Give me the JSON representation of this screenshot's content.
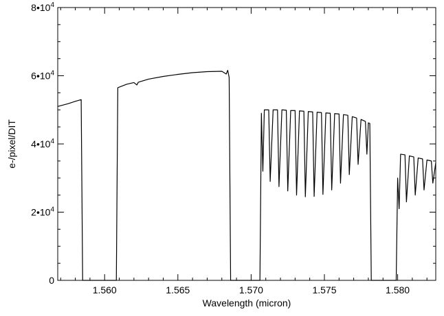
{
  "chart_data": {
    "type": "line",
    "title": "",
    "xlabel": "Wavelength (micron)",
    "ylabel": "e-/pixel/DIT",
    "xlim": [
      1.5568,
      1.5826
    ],
    "ylim": [
      0,
      80000
    ],
    "x_ticks": [
      {
        "value": 1.56,
        "label": "1.560"
      },
      {
        "value": 1.565,
        "label": "1.565"
      },
      {
        "value": 1.57,
        "label": "1.570"
      },
      {
        "value": 1.575,
        "label": "1.575"
      },
      {
        "value": 1.58,
        "label": "1.580"
      }
    ],
    "y_ticks": [
      {
        "value": 0,
        "base": "0",
        "exp": ""
      },
      {
        "value": 20000,
        "base": "2•10",
        "exp": "4"
      },
      {
        "value": 40000,
        "base": "4•10",
        "exp": "4"
      },
      {
        "value": 60000,
        "base": "6•10",
        "exp": "4"
      },
      {
        "value": 80000,
        "base": "8•10",
        "exp": "4"
      }
    ],
    "grid": false,
    "color": "#000000",
    "series": [
      {
        "points": [
          [
            1.5568,
            51000
          ],
          [
            1.5575,
            51800
          ],
          [
            1.558,
            52500
          ],
          [
            1.5584,
            53000
          ],
          [
            1.5585,
            0
          ],
          [
            1.5608,
            0
          ],
          [
            1.5609,
            56500
          ],
          [
            1.5615,
            57500
          ],
          [
            1.562,
            58000
          ],
          [
            1.5622,
            57300
          ],
          [
            1.5623,
            58100
          ],
          [
            1.563,
            59000
          ],
          [
            1.564,
            59800
          ],
          [
            1.565,
            60400
          ],
          [
            1.566,
            60900
          ],
          [
            1.567,
            61200
          ],
          [
            1.568,
            61300
          ],
          [
            1.5683,
            60500
          ],
          [
            1.5684,
            61600
          ],
          [
            1.5685,
            59500
          ],
          [
            1.5686,
            0
          ],
          [
            1.5706,
            0
          ],
          [
            1.5707,
            49000
          ],
          [
            1.5708,
            32000
          ],
          [
            1.5709,
            50000
          ],
          [
            1.5712,
            50000
          ],
          [
            1.5713,
            29000
          ],
          [
            1.5715,
            50000
          ],
          [
            1.5718,
            50000
          ],
          [
            1.5719,
            27500
          ],
          [
            1.5721,
            50000
          ],
          [
            1.5724,
            49900
          ],
          [
            1.5725,
            26200
          ],
          [
            1.5727,
            49800
          ],
          [
            1.573,
            49800
          ],
          [
            1.5731,
            25000
          ],
          [
            1.5733,
            49700
          ],
          [
            1.5736,
            49600
          ],
          [
            1.5737,
            24500
          ],
          [
            1.5739,
            49500
          ],
          [
            1.5742,
            49400
          ],
          [
            1.5743,
            24600
          ],
          [
            1.5745,
            49300
          ],
          [
            1.5748,
            49200
          ],
          [
            1.5749,
            25200
          ],
          [
            1.5751,
            49100
          ],
          [
            1.5754,
            49000
          ],
          [
            1.5755,
            26500
          ],
          [
            1.5757,
            48900
          ],
          [
            1.576,
            48800
          ],
          [
            1.5761,
            28500
          ],
          [
            1.5763,
            48600
          ],
          [
            1.5766,
            48400
          ],
          [
            1.5767,
            31000
          ],
          [
            1.5769,
            48000
          ],
          [
            1.5772,
            47600
          ],
          [
            1.5773,
            34000
          ],
          [
            1.5775,
            47200
          ],
          [
            1.5778,
            46600
          ],
          [
            1.5779,
            37000
          ],
          [
            1.578,
            46200
          ],
          [
            1.5781,
            46000
          ],
          [
            1.5782,
            0
          ],
          [
            1.5799,
            0
          ],
          [
            1.58,
            30000
          ],
          [
            1.5801,
            21000
          ],
          [
            1.5802,
            37000
          ],
          [
            1.5805,
            36800
          ],
          [
            1.5806,
            23000
          ],
          [
            1.5808,
            36500
          ],
          [
            1.5811,
            36200
          ],
          [
            1.5812,
            25000
          ],
          [
            1.5814,
            35900
          ],
          [
            1.5817,
            35600
          ],
          [
            1.5818,
            26500
          ],
          [
            1.582,
            35300
          ],
          [
            1.5823,
            35000
          ],
          [
            1.5824,
            28500
          ],
          [
            1.5826,
            34500
          ]
        ]
      }
    ]
  }
}
